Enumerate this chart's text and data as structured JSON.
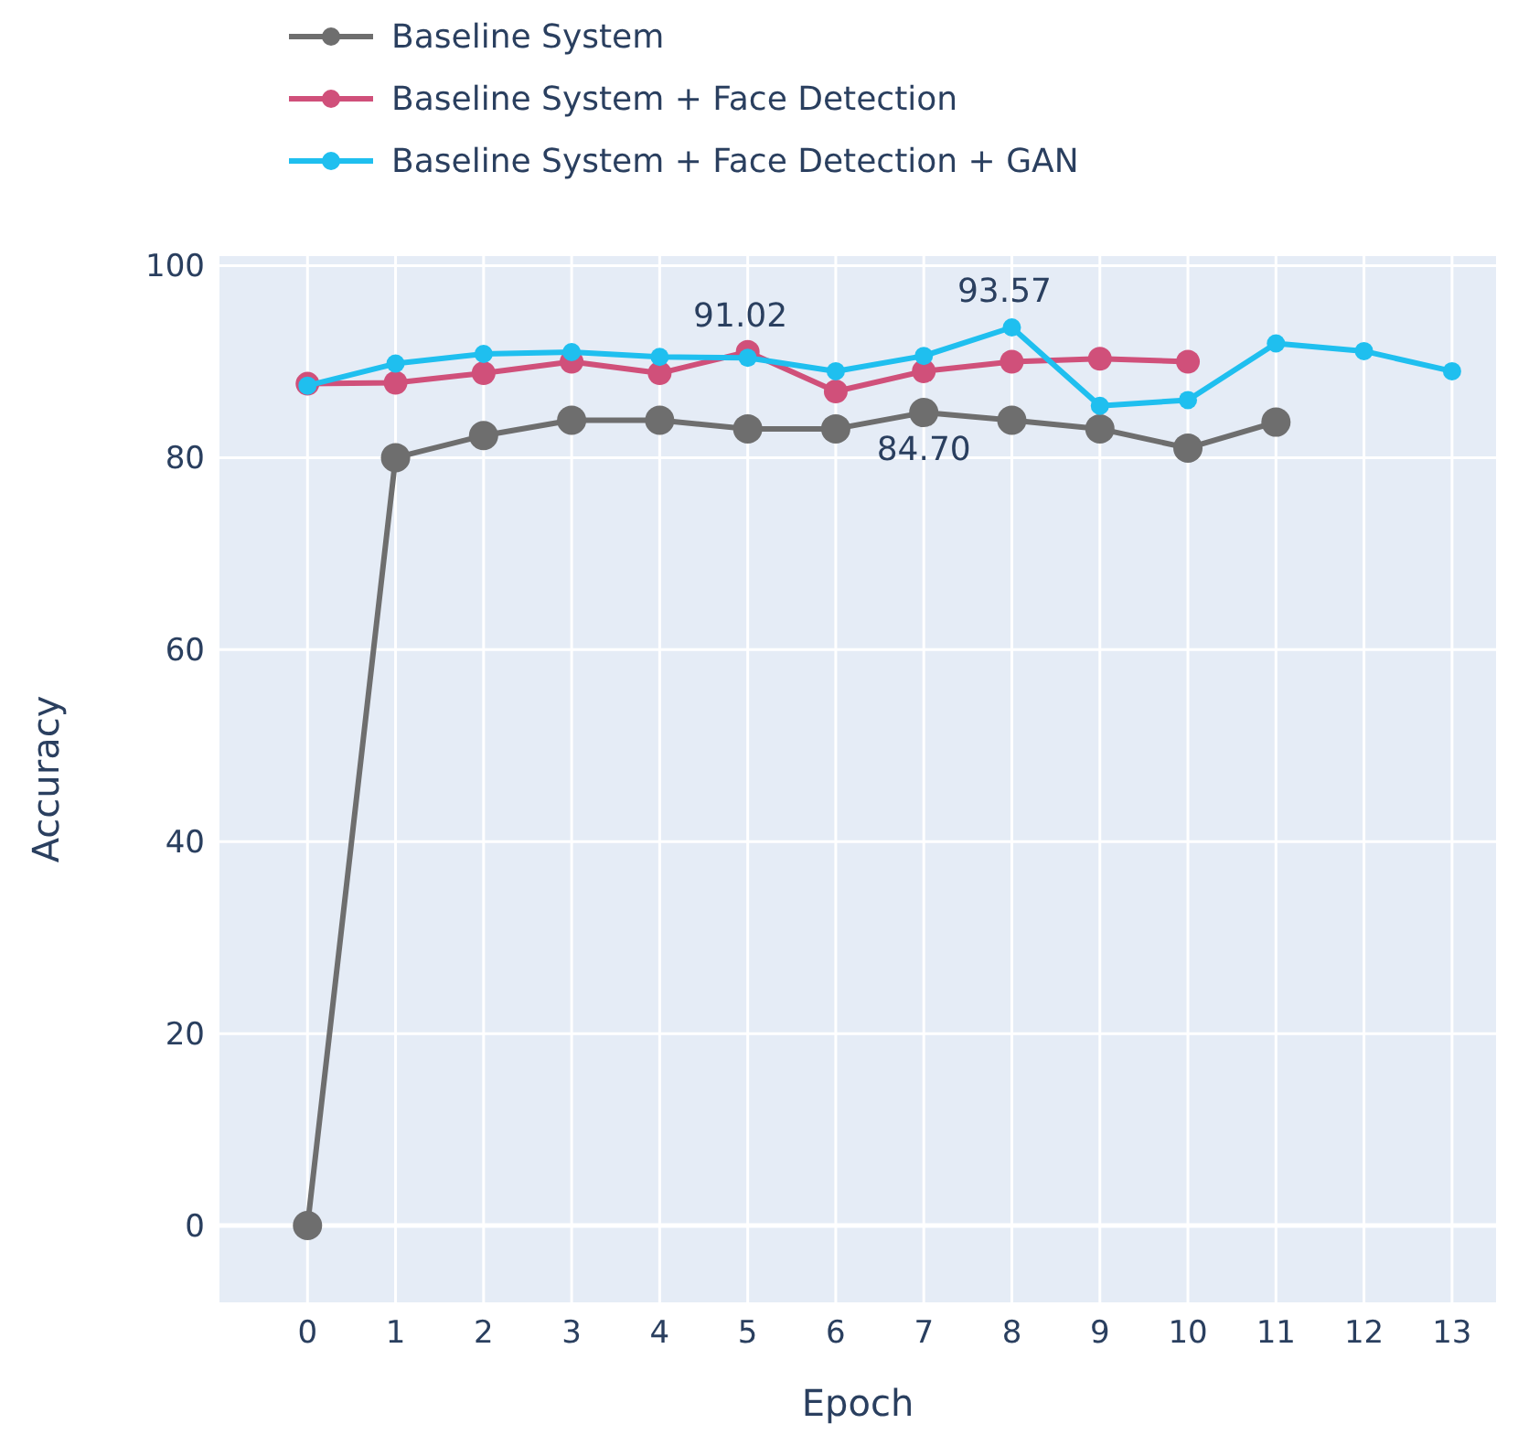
{
  "chart_data": {
    "type": "line",
    "xlabel": "Epoch",
    "ylabel": "Accuracy",
    "x": [
      0,
      1,
      2,
      3,
      4,
      5,
      6,
      7,
      8,
      9,
      10,
      11,
      12,
      13
    ],
    "xlim": [
      -1,
      13.5
    ],
    "xticks": [
      0,
      1,
      2,
      3,
      4,
      5,
      6,
      7,
      8,
      9,
      10,
      11,
      12,
      13
    ],
    "ylim": [
      -8,
      101
    ],
    "yticks": [
      0,
      20,
      40,
      60,
      80,
      100
    ],
    "series": [
      {
        "name": "Baseline System",
        "color": "#6e6e6e",
        "values": [
          0,
          80,
          82.3,
          83.9,
          83.9,
          83,
          83,
          84.7,
          83.9,
          83,
          81,
          83.7,
          null,
          null
        ]
      },
      {
        "name": "Baseline System + Face Detection",
        "color": "#d0507a",
        "values": [
          87.7,
          87.8,
          88.8,
          90,
          88.8,
          91.02,
          86.9,
          89,
          90,
          90.3,
          90,
          null,
          null,
          null
        ]
      },
      {
        "name": "Baseline System + Face Detection + GAN",
        "color": "#1fbfef",
        "values": [
          87.5,
          89.8,
          90.8,
          91,
          90.5,
          90.4,
          89,
          90.6,
          93.57,
          85.4,
          86,
          91.9,
          91.1,
          89
        ]
      }
    ],
    "annotations": [
      {
        "text": "91.02",
        "x": 5,
        "y": 91.02
      },
      {
        "text": "93.57",
        "x": 8,
        "y": 93.57
      },
      {
        "text": "84.70",
        "x": 7,
        "y": 84.7
      }
    ],
    "grid": true,
    "legend": "top left",
    "marker": "circle",
    "line_style": "solid"
  }
}
